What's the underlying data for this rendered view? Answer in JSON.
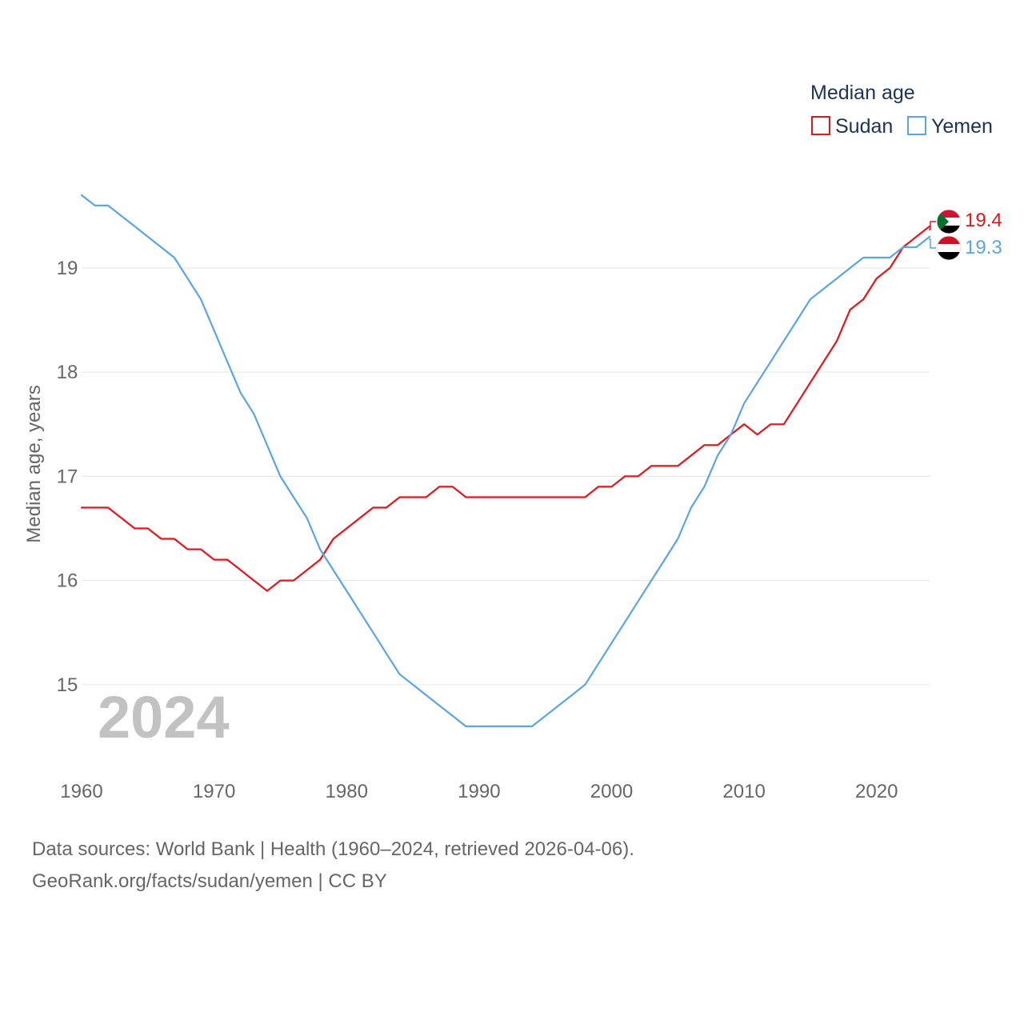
{
  "chart_data": {
    "type": "line",
    "legend_title": "Median age",
    "ylabel": "Median age, years",
    "xlabel": "",
    "year_watermark": "2024",
    "x_ticks": [
      1960,
      1970,
      1980,
      1990,
      2000,
      2010,
      2020
    ],
    "y_ticks": [
      15,
      16,
      17,
      18,
      19
    ],
    "xlim": [
      1960,
      2024
    ],
    "ylim": [
      14.2,
      19.96
    ],
    "x": [
      1960,
      1961,
      1962,
      1963,
      1964,
      1965,
      1966,
      1967,
      1968,
      1969,
      1970,
      1971,
      1972,
      1973,
      1974,
      1975,
      1976,
      1977,
      1978,
      1979,
      1980,
      1981,
      1982,
      1983,
      1984,
      1985,
      1986,
      1987,
      1988,
      1989,
      1990,
      1991,
      1992,
      1993,
      1994,
      1995,
      1996,
      1997,
      1998,
      1999,
      2000,
      2001,
      2002,
      2003,
      2004,
      2005,
      2006,
      2007,
      2008,
      2009,
      2010,
      2011,
      2012,
      2013,
      2014,
      2015,
      2016,
      2017,
      2018,
      2019,
      2020,
      2021,
      2022,
      2023,
      2024
    ],
    "series": [
      {
        "name": "Sudan",
        "color": "#e8141b",
        "end_label": "19.4",
        "flag": "sudan-flag-icon",
        "values": [
          16.7,
          16.7,
          16.7,
          16.6,
          16.5,
          16.5,
          16.4,
          16.4,
          16.3,
          16.3,
          16.2,
          16.2,
          16.1,
          16.0,
          15.9,
          16.0,
          16.0,
          16.1,
          16.2,
          16.4,
          16.5,
          16.6,
          16.7,
          16.7,
          16.8,
          16.8,
          16.8,
          16.9,
          16.9,
          16.8,
          16.8,
          16.8,
          16.8,
          16.8,
          16.8,
          16.8,
          16.8,
          16.8,
          16.8,
          16.9,
          16.9,
          17.0,
          17.0,
          17.1,
          17.1,
          17.1,
          17.2,
          17.3,
          17.3,
          17.4,
          17.5,
          17.4,
          17.5,
          17.5,
          17.7,
          17.9,
          18.1,
          18.3,
          18.6,
          18.7,
          18.9,
          19.0,
          19.2,
          19.3,
          19.4
        ]
      },
      {
        "name": "Yemen",
        "color": "#5aa5e6",
        "end_label": "19.3",
        "flag": "yemen-flag-icon",
        "values": [
          19.7,
          19.6,
          19.6,
          19.5,
          19.4,
          19.3,
          19.2,
          19.1,
          18.9,
          18.7,
          18.4,
          18.1,
          17.8,
          17.6,
          17.3,
          17.0,
          16.8,
          16.6,
          16.3,
          16.1,
          15.9,
          15.7,
          15.5,
          15.3,
          15.1,
          15.0,
          14.9,
          14.8,
          14.7,
          14.6,
          14.6,
          14.6,
          14.6,
          14.6,
          14.6,
          14.7,
          14.8,
          14.9,
          15.0,
          15.2,
          15.4,
          15.6,
          15.8,
          16.0,
          16.2,
          16.4,
          16.7,
          16.9,
          17.2,
          17.4,
          17.7,
          17.9,
          18.1,
          18.3,
          18.5,
          18.7,
          18.8,
          18.9,
          19.0,
          19.1,
          19.1,
          19.1,
          19.2,
          19.2,
          19.3
        ]
      }
    ]
  },
  "footer": {
    "sources": "Data sources: World Bank | Health (1960–2024, retrieved 2026-04-06).",
    "attribution": "GeoRank.org/facts/sudan/yemen | CC BY"
  }
}
